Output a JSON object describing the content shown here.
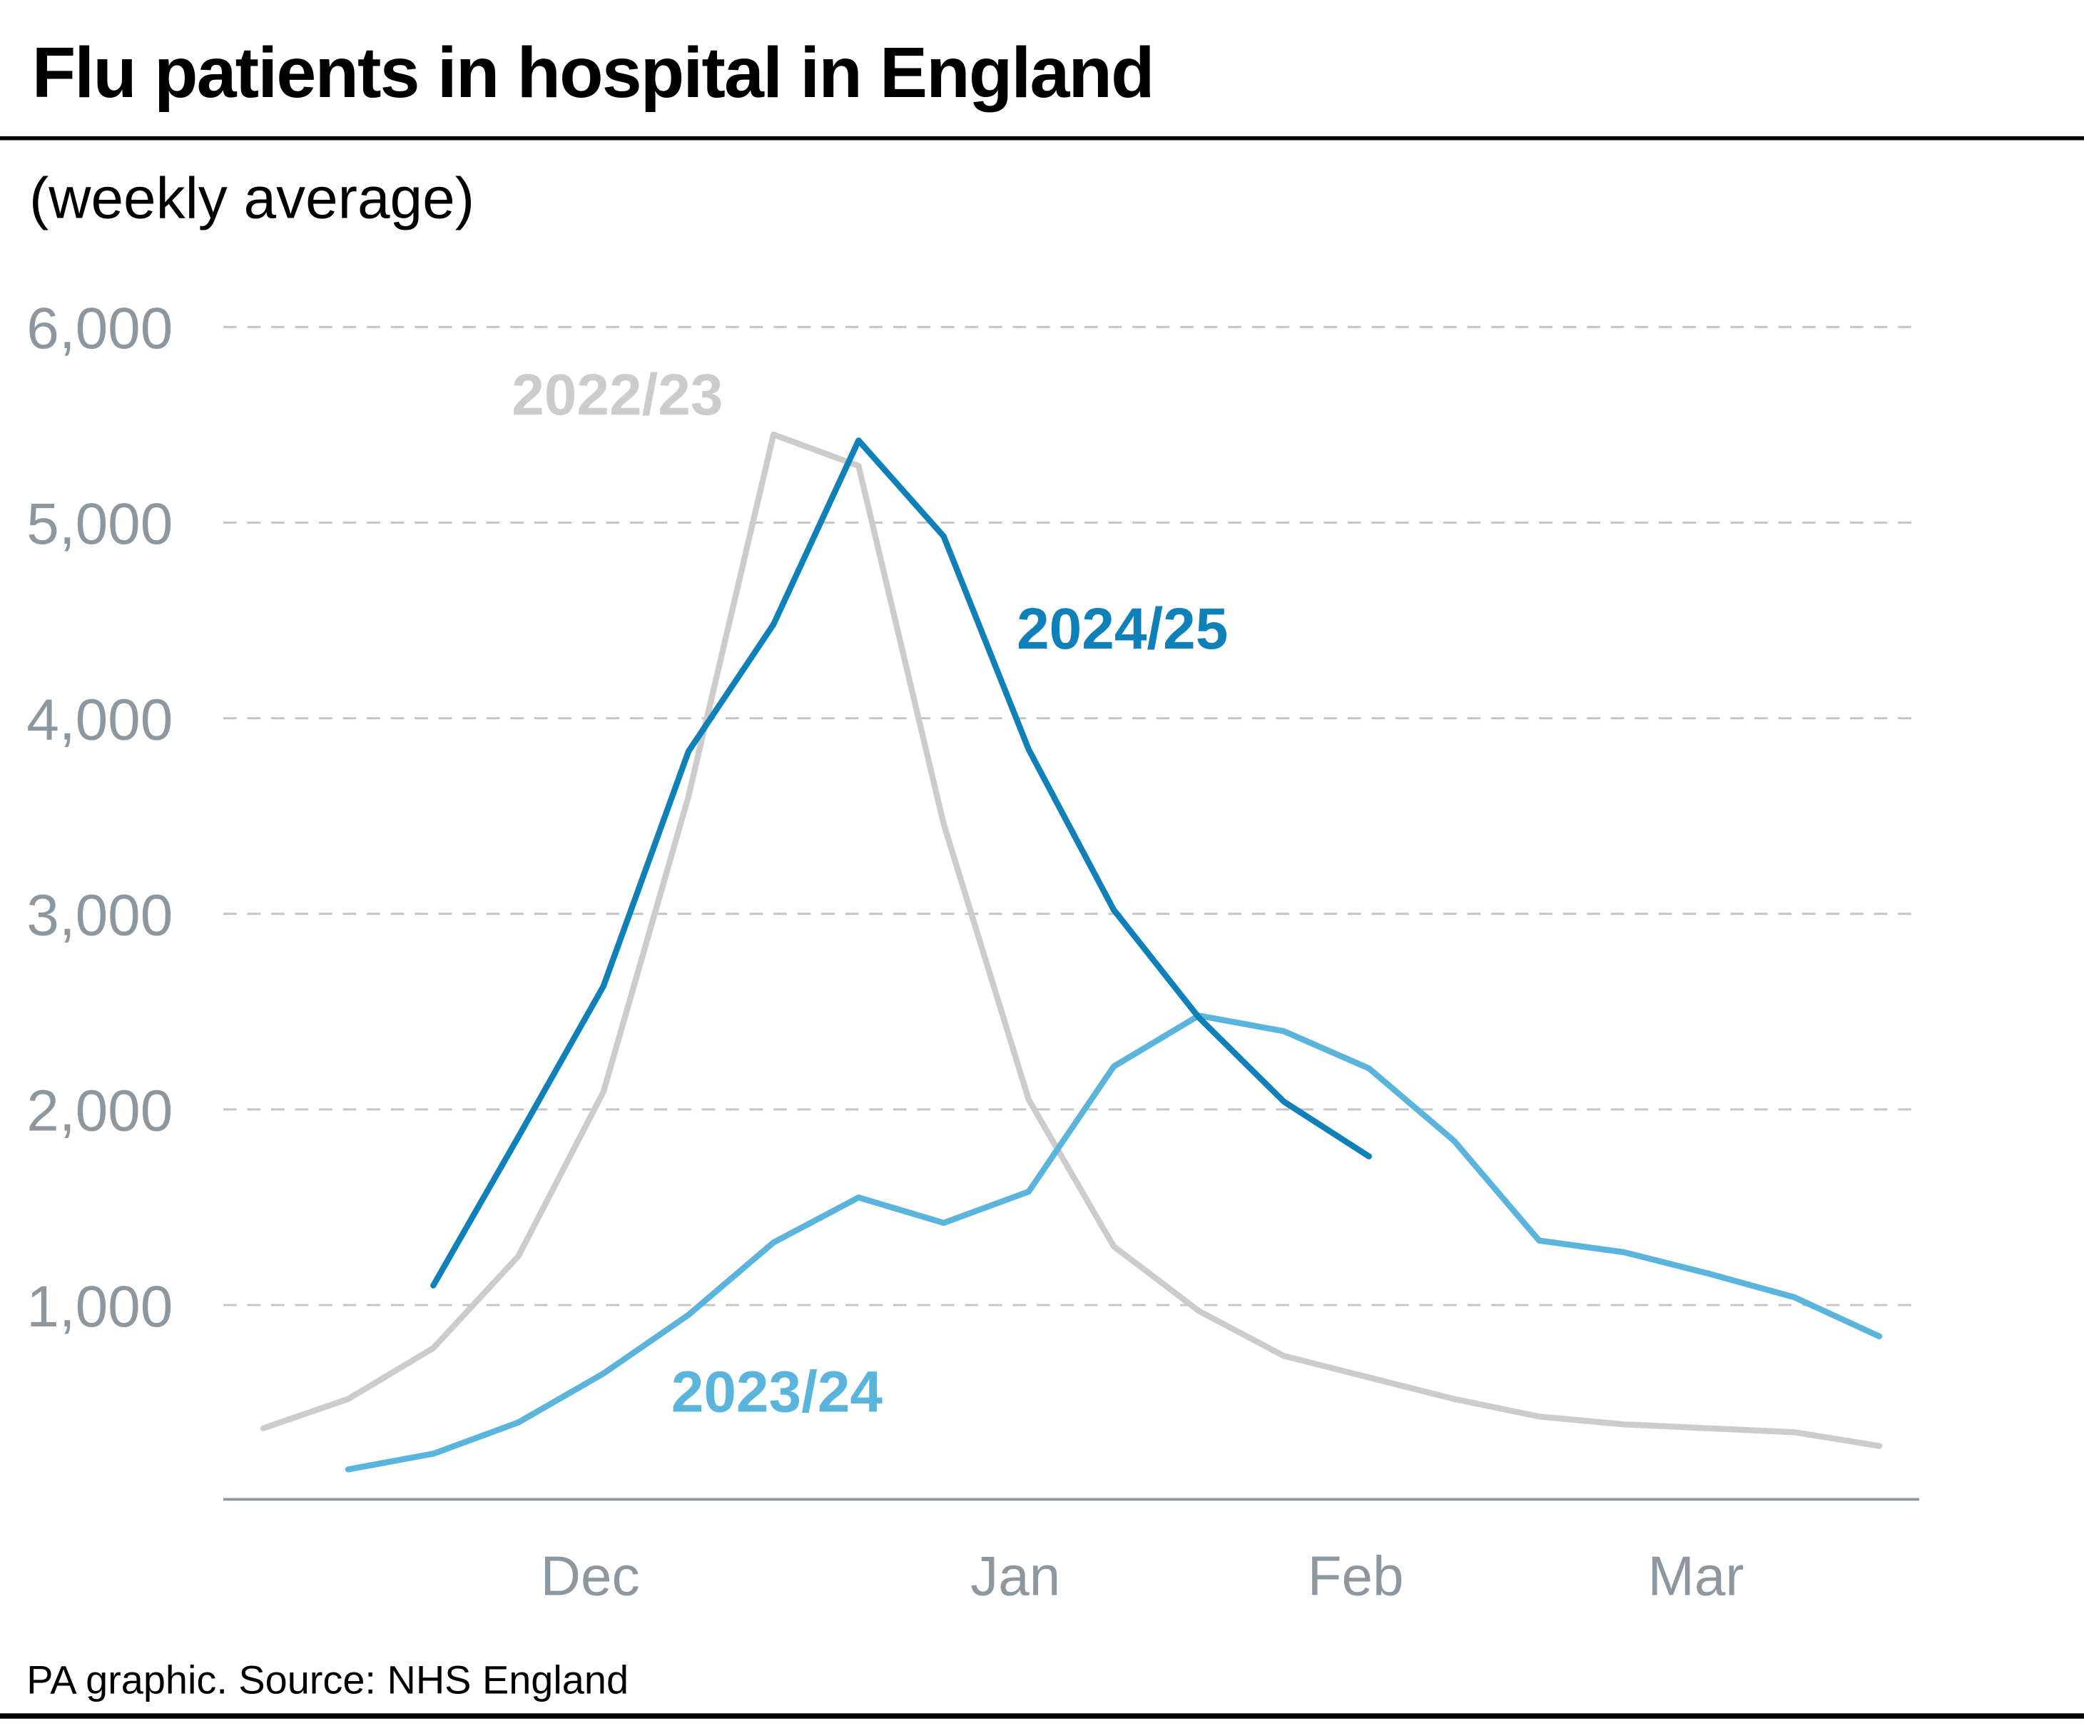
{
  "chart_data": {
    "type": "line",
    "title": "Flu patients in hospital in England",
    "subtitle": "(weekly average)",
    "source": "PA graphic. Source: NHS England",
    "categories": [
      null,
      null,
      null,
      null,
      "Dec",
      null,
      null,
      null,
      null,
      "Jan",
      null,
      null,
      null,
      "Feb",
      null,
      null,
      null,
      "Mar",
      null,
      null
    ],
    "series": [
      {
        "name": "2022/23",
        "color": "#cccccc",
        "values": [
          370,
          520,
          780,
          1250,
          2090,
          3600,
          5450,
          5290,
          3460,
          2050,
          1300,
          970,
          740,
          630,
          520,
          430,
          390,
          370,
          350,
          280
        ]
      },
      {
        "name": "2023/24",
        "color": "#5ab4dc",
        "values": [
          null,
          160,
          240,
          400,
          650,
          950,
          1320,
          1550,
          1420,
          1580,
          2220,
          2480,
          2400,
          2210,
          1840,
          1330,
          1270,
          1160,
          1040,
          840
        ]
      },
      {
        "name": "2024/25",
        "color": "#1080b8",
        "values": [
          null,
          null,
          1100,
          1860,
          2630,
          3830,
          4480,
          5420,
          4930,
          3840,
          3020,
          2470,
          2040,
          1760,
          null,
          null,
          null,
          null,
          null,
          null
        ]
      }
    ],
    "ylim": [
      0,
      6000
    ],
    "yticks": [
      {
        "value": 1000,
        "label": "1,000"
      },
      {
        "value": 2000,
        "label": "2,000"
      },
      {
        "value": 3000,
        "label": "3,000"
      },
      {
        "value": 4000,
        "label": "4,000"
      },
      {
        "value": 5000,
        "label": "5,000"
      },
      {
        "value": 6000,
        "label": "6,000"
      }
    ],
    "grid": true
  }
}
